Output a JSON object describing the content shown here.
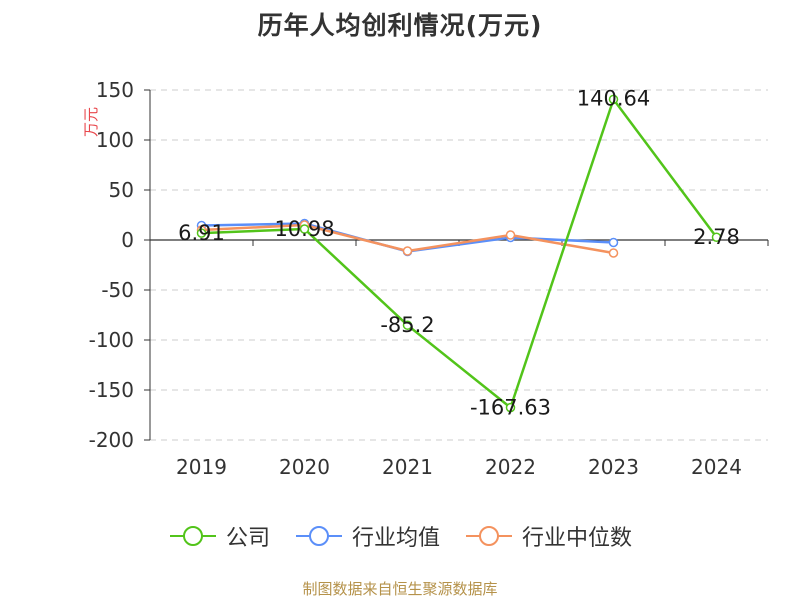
{
  "title": "历年人均创利情况(万元)",
  "source": "制图数据来自恒生聚源数据库",
  "chart_data": {
    "type": "line",
    "title": "历年人均创利情况(万元)",
    "ylabel": "万元",
    "xlabel": "",
    "categories": [
      "2019",
      "2020",
      "2021",
      "2022",
      "2023",
      "2024"
    ],
    "ylim": [
      -200,
      150
    ],
    "yticks": [
      150,
      100,
      50,
      0,
      -50,
      -100,
      -150,
      -200
    ],
    "grid": true,
    "legend": "bottom",
    "series": [
      {
        "name": "公司",
        "color": "#52c41a",
        "values": [
          6.91,
          10.98,
          -85.2,
          -167.63,
          140.64,
          2.78
        ],
        "labels": [
          "6.91",
          "10.98",
          "-85.2",
          "-167.63",
          "140.64",
          "2.78"
        ]
      },
      {
        "name": "行业均值",
        "color": "#5b8ff9",
        "values": [
          14.5,
          16.5,
          -11.5,
          2.5,
          -2.5,
          null
        ]
      },
      {
        "name": "行业中位数",
        "color": "#f4925e",
        "values": [
          10.0,
          15.0,
          -11.0,
          5.0,
          -13.0,
          null
        ]
      }
    ]
  }
}
